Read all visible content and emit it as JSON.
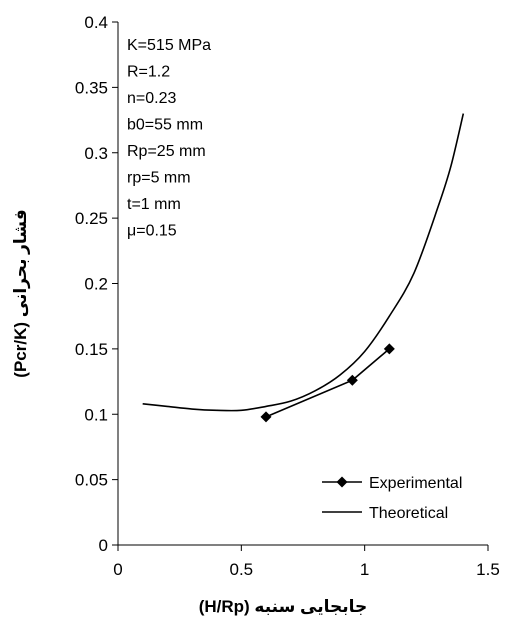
{
  "chart_data": {
    "type": "line",
    "xlabel": "جابجایی سنبه (H/Rp)",
    "ylabel": "فشار بحرانی (Pcr/K)",
    "xlim": [
      0,
      1.5
    ],
    "ylim": [
      0,
      0.4
    ],
    "x_ticks": [
      "0",
      "0.5",
      "1",
      "1.5"
    ],
    "y_ticks": [
      "0",
      "0.05",
      "0.1",
      "0.15",
      "0.2",
      "0.25",
      "0.3",
      "0.35",
      "0.4"
    ],
    "grid": false,
    "legend_position": "bottom-right",
    "parameters": [
      "K=515 MPa",
      "R=1.2",
      "n=0.23",
      "b0=55 mm",
      "Rp=25 mm",
      "rp=5 mm",
      "t=1 mm",
      "μ=0.15"
    ],
    "series": [
      {
        "name": "Experimental",
        "marker": "diamond",
        "color": "#000000",
        "x": [
          0.6,
          0.95,
          1.1
        ],
        "y": [
          0.098,
          0.126,
          0.15
        ]
      },
      {
        "name": "Theoretical",
        "marker": "none",
        "color": "#000000",
        "x": [
          0.1,
          0.2,
          0.3,
          0.4,
          0.5,
          0.6,
          0.7,
          0.8,
          0.9,
          1.0,
          1.1,
          1.2,
          1.3,
          1.35,
          1.4
        ],
        "y": [
          0.108,
          0.106,
          0.104,
          0.103,
          0.103,
          0.106,
          0.11,
          0.118,
          0.13,
          0.148,
          0.175,
          0.208,
          0.26,
          0.29,
          0.33
        ]
      }
    ]
  }
}
